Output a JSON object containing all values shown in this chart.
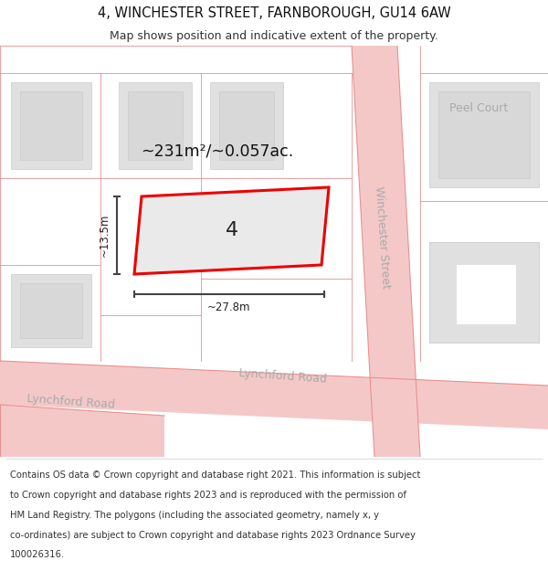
{
  "title": "4, WINCHESTER STREET, FARNBOROUGH, GU14 6AW",
  "subtitle": "Map shows position and indicative extent of the property.",
  "footer_lines": [
    "Contains OS data © Crown copyright and database right 2021. This information is subject",
    "to Crown copyright and database rights 2023 and is reproduced with the permission of",
    "HM Land Registry. The polygons (including the associated geometry, namely x, y",
    "co-ordinates) are subject to Crown copyright and database rights 2023 Ordnance Survey",
    "100026316."
  ],
  "map_bg": "#f7f7f7",
  "road_fill": "#f5c8c8",
  "road_line": "#e89090",
  "bld_fill": "#e0e0e0",
  "bld_stroke": "#cccccc",
  "plot_fill": "#eaeaea",
  "plot_stroke": "#ee0000",
  "dim_color": "#444444",
  "text_gray": "#aaaaaa",
  "area_text": "~231m²/~0.057ac.",
  "plot_number": "4",
  "dim_w": "~27.8m",
  "dim_h": "~13.5m",
  "label_winchester": "Winchester Street",
  "label_lynchford1": "Lynchford Road",
  "label_lynchford2": "Lynchford Road",
  "label_peel": "Peel Court",
  "title_fs": 10.5,
  "sub_fs": 9,
  "footer_fs": 7.2,
  "road_label_fs": 9
}
